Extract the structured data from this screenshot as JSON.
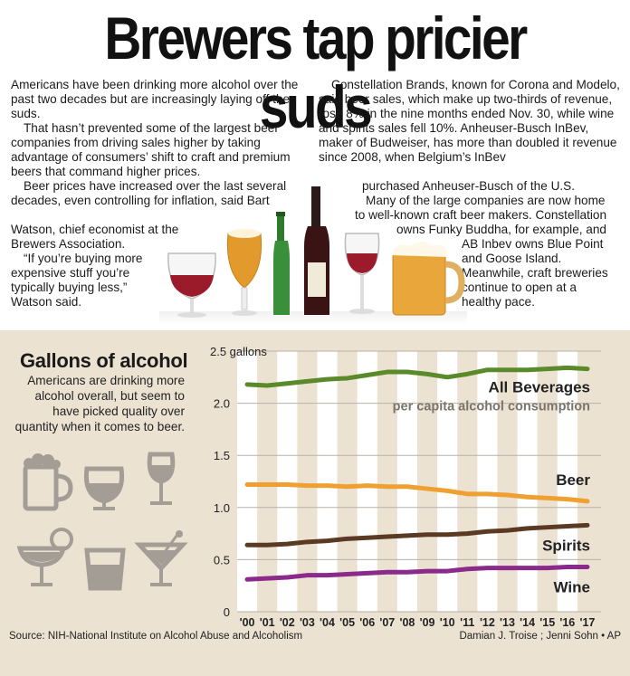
{
  "headline": "Brewers tap pricier suds",
  "story": {
    "col1": [
      "Americans have been drinking more alcohol over the past two decades but are increasingly laying off the suds.",
      "That hasn’t prevented some of the largest beer companies from driving sales higher by taking advantage of consumers’ shift to craft and premium beers that command higher prices.",
      "Beer prices have increased over the last several decades, even controlling for inflation, said Bart"
    ],
    "col1_tail_lines": [
      "Watson, chief economist at the",
      "Brewers Association.",
      "“If you’re buying more",
      "expensive stuff you’re",
      "typically buying less,”",
      "Watson said."
    ],
    "col2": [
      "Constellation Brands, known for Corona and Modelo, said beer sales, which make up two-thirds of revenue, rose 8% in the nine months ended Nov. 30, while wine and spirits sales fell 10%. Anheuser-Busch InBev, maker of Budweiser, has more than doubled it revenue since 2008, when Belgium’s InBev"
    ],
    "col2_tail_lines": [
      "purchased Anheuser-Busch of the U.S.",
      "Many of the large companies are now home",
      "to well-known craft beer makers. Constellation",
      "owns Funky Buddha, for example, and",
      "AB Inbev owns Blue Point",
      "and Goose Island.",
      "Meanwhile, craft breweries",
      "continue to open at a",
      "healthy pace."
    ]
  },
  "chart_panel": {
    "title": "Gallons of alcohol",
    "subtitle": "Americans are drinking more alcohol overall, but seem to have picked quality over quantity when it comes to beer.",
    "source": "Source: NIH-National Institute on Alcohol Abuse and Alcoholism",
    "credit": "Damian J. Troise ; Jenni Sohn • AP",
    "icons": [
      "beer-mug-icon",
      "brandy-snifter-icon",
      "wine-glass-icon",
      "margarita-glass-icon",
      "rocks-glass-icon",
      "martini-glass-icon"
    ]
  },
  "chart_data": {
    "type": "line",
    "title": "Gallons of alcohol",
    "subtitle": "per capita alcohol consumption",
    "y_unit_label": "2.5 gallons",
    "ylim": [
      0,
      2.5
    ],
    "yticks": [
      0,
      0.5,
      1.0,
      1.5,
      2.0,
      2.5
    ],
    "ytick_labels": [
      "0",
      "0.5",
      "1.0",
      "1.5",
      "2.0",
      "2.5 gallons"
    ],
    "x": [
      "'00",
      "'01",
      "'02",
      "'03",
      "'04",
      "'05",
      "'06",
      "'07",
      "'08",
      "'09",
      "'10",
      "'11",
      "'12",
      "'13",
      "'14",
      "'15",
      "'16",
      "'17"
    ],
    "grid": "alternating vertical stripes per year",
    "series": [
      {
        "name": "All Beverages",
        "color": "#5a8a2a",
        "values": [
          2.18,
          2.17,
          2.19,
          2.21,
          2.23,
          2.24,
          2.27,
          2.3,
          2.3,
          2.28,
          2.25,
          2.28,
          2.32,
          2.32,
          2.32,
          2.33,
          2.34,
          2.33
        ]
      },
      {
        "name": "Beer",
        "color": "#f0a030",
        "values": [
          1.22,
          1.22,
          1.22,
          1.21,
          1.21,
          1.2,
          1.21,
          1.2,
          1.2,
          1.18,
          1.16,
          1.13,
          1.13,
          1.12,
          1.1,
          1.09,
          1.08,
          1.06
        ]
      },
      {
        "name": "Spirits",
        "color": "#5a3a22",
        "values": [
          0.64,
          0.64,
          0.65,
          0.67,
          0.68,
          0.7,
          0.71,
          0.72,
          0.73,
          0.74,
          0.74,
          0.75,
          0.77,
          0.78,
          0.8,
          0.81,
          0.82,
          0.83
        ]
      },
      {
        "name": "Wine",
        "color": "#8a2a8a",
        "values": [
          0.31,
          0.32,
          0.33,
          0.35,
          0.35,
          0.36,
          0.37,
          0.38,
          0.38,
          0.39,
          0.39,
          0.41,
          0.42,
          0.42,
          0.42,
          0.42,
          0.43,
          0.43
        ]
      }
    ]
  }
}
